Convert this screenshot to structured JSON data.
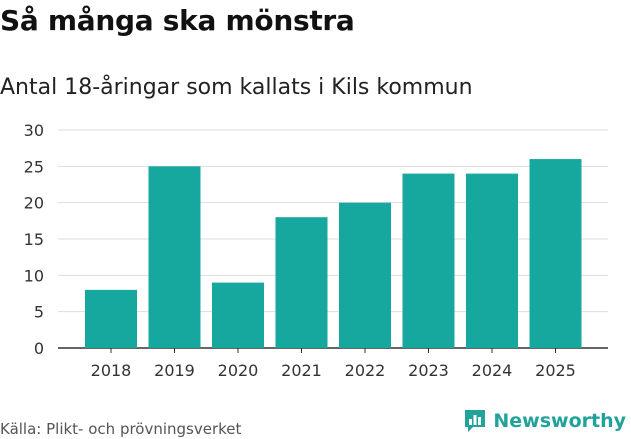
{
  "title": "Så många ska mönstra",
  "subtitle": "Antal 18-åringar som kallats i Kils kommun",
  "source": "Källa: Plikt- och prövningsverket",
  "brand": {
    "name": "Newsworthy",
    "icon": "newsworthy-logo-icon",
    "color": "#21a39b"
  },
  "chart_data": {
    "type": "bar",
    "categories": [
      "2018",
      "2019",
      "2020",
      "2021",
      "2022",
      "2023",
      "2024",
      "2025"
    ],
    "values": [
      8,
      25,
      9,
      18,
      20,
      24,
      24,
      26
    ],
    "title": "Så många ska mönstra",
    "subtitle": "Antal 18-åringar som kallats i Kils kommun",
    "xlabel": "",
    "ylabel": "",
    "ylim": [
      0,
      30
    ],
    "yticks": [
      0,
      5,
      10,
      15,
      20,
      25,
      30
    ],
    "grid": true,
    "bar_color": "#16a89e"
  }
}
